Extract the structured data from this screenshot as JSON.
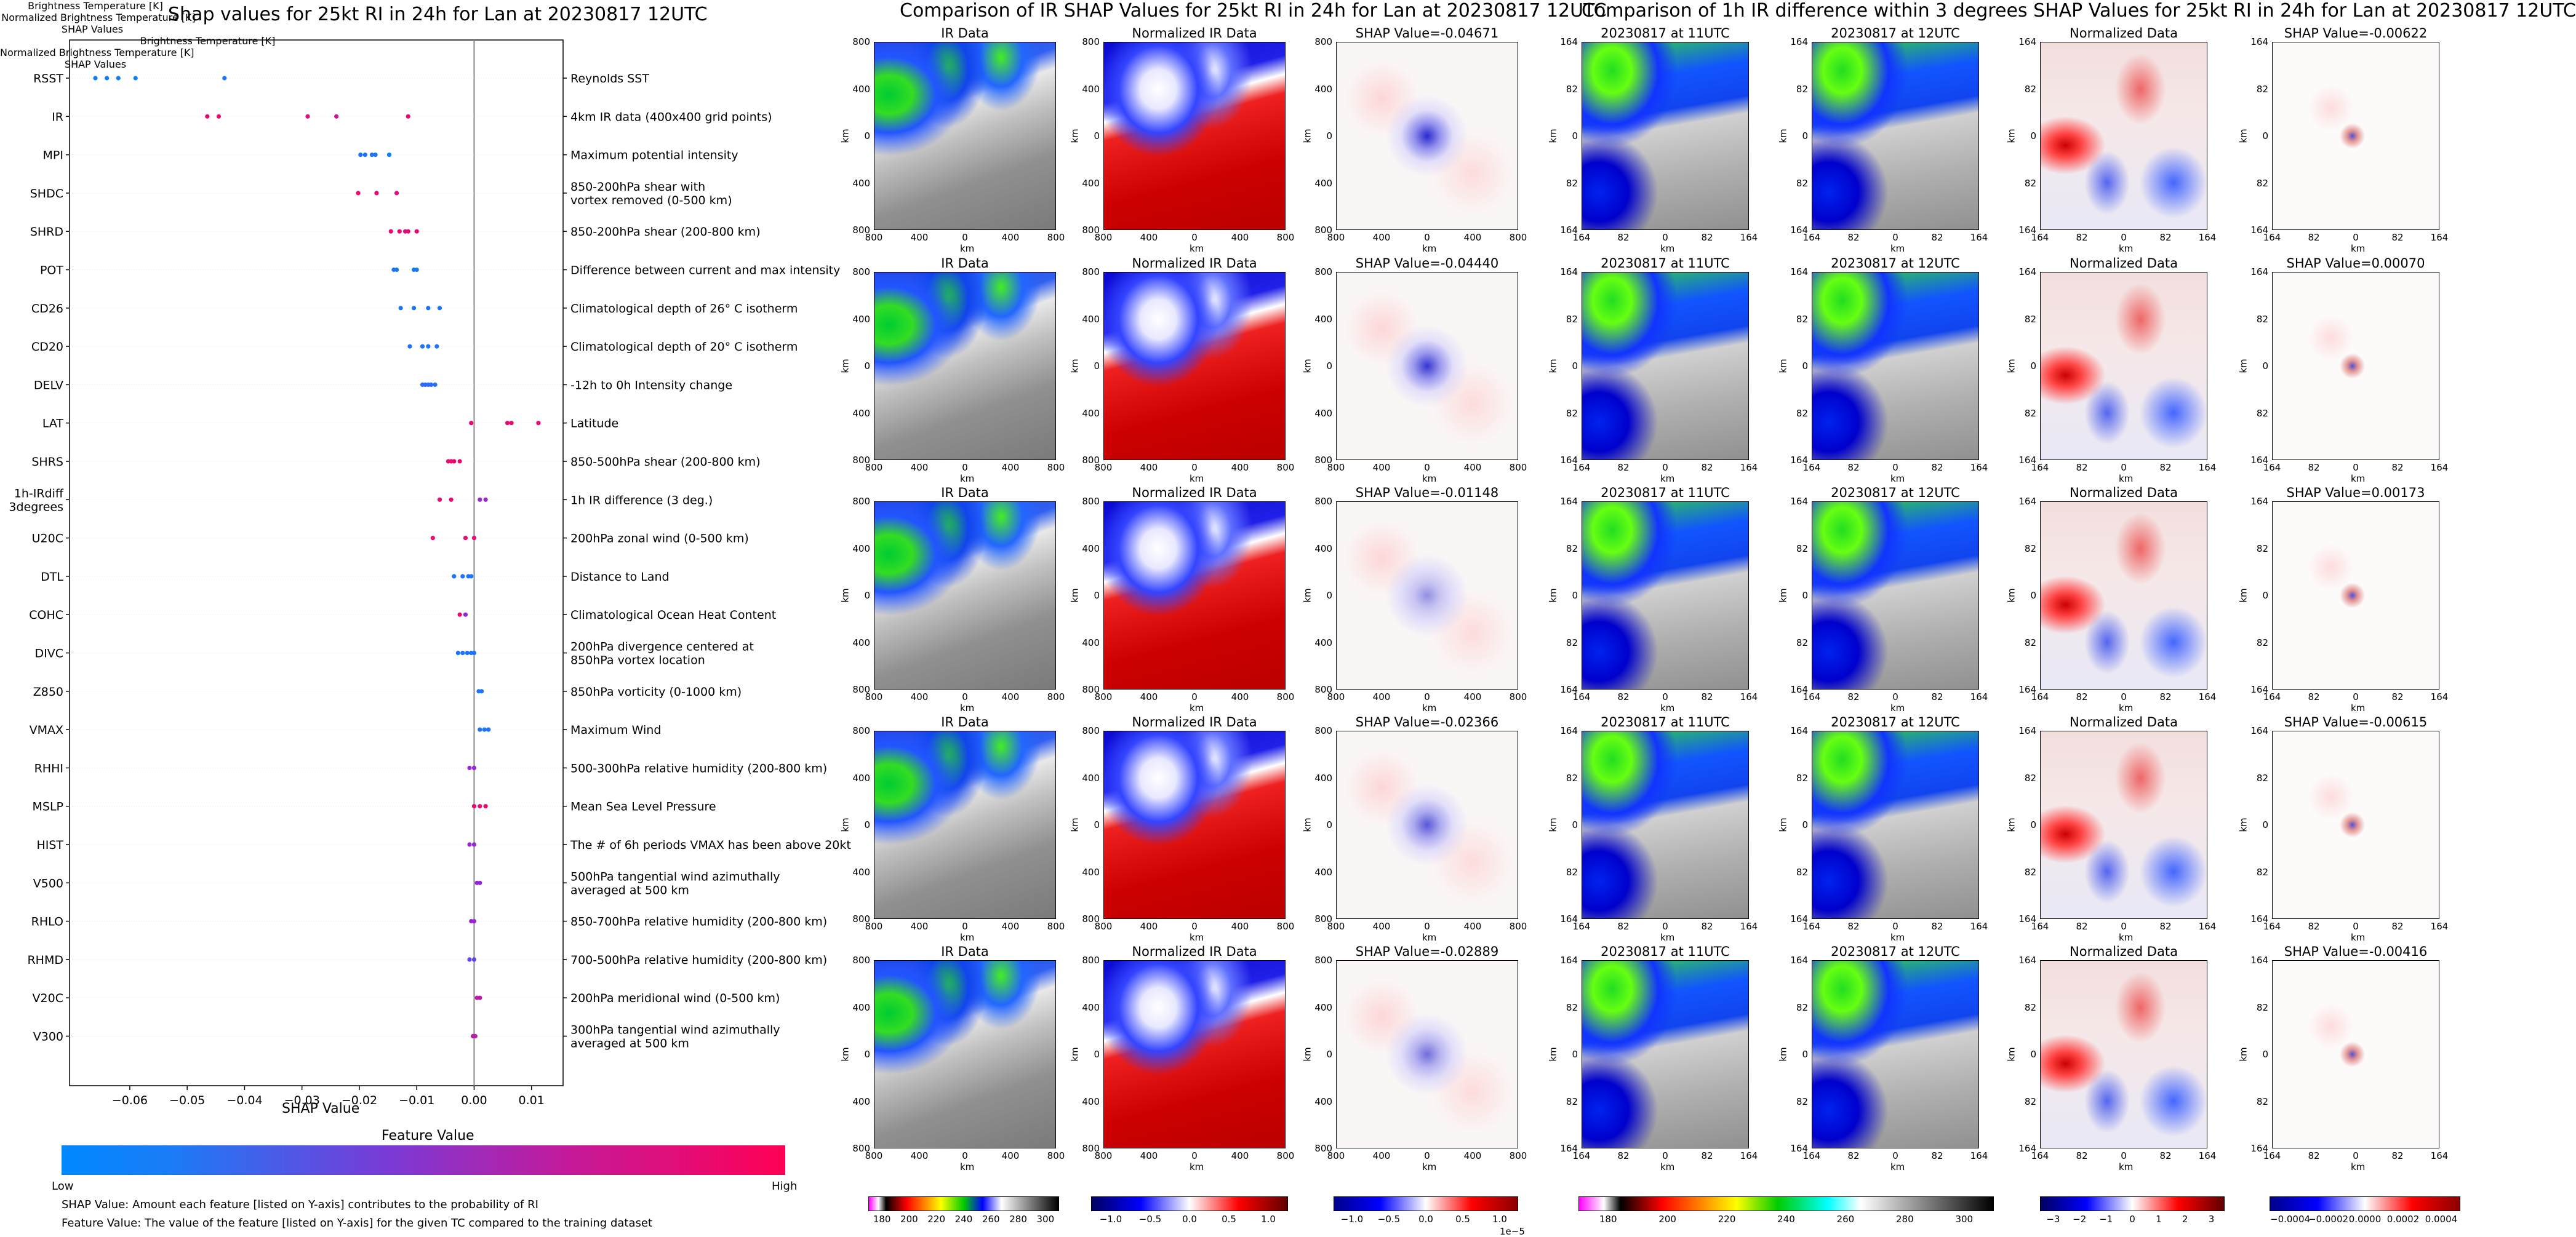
{
  "left_chart": {
    "title": "Shap values for 25kt RI in 24h for Lan at 20230817 12UTC",
    "xlabel": "SHAP Value",
    "x_ticks": [
      "-0.06",
      "-0.05",
      "-0.04",
      "-0.03",
      "-0.02",
      "-0.01",
      "0.00",
      "0.01"
    ],
    "colorbar_title": "Feature Value",
    "colorbar_low": "Low",
    "colorbar_high": "High",
    "note_line_1": "SHAP Value: Amount each feature [listed on Y-axis] contributes to the probability of RI",
    "note_line_2": "Feature Value: The value of the feature [listed on Y-axis] for the given TC compared to the training dataset"
  },
  "chart_data": {
    "type": "scatter",
    "title": "Shap values for 25kt RI in 24h for Lan at 20230817 12UTC",
    "xlabel": "SHAP Value",
    "xlim": [
      -0.0705,
      0.0155
    ],
    "features": [
      {
        "name": "RSST",
        "desc": [
          "Reynolds SST"
        ],
        "points": [
          [
            -0.066,
            0.05
          ],
          [
            -0.064,
            0.05
          ],
          [
            -0.062,
            0.05
          ],
          [
            -0.059,
            0.05
          ],
          [
            -0.0435,
            0.1
          ]
        ]
      },
      {
        "name": "IR",
        "desc": [
          "4km IR data (400x400 grid points)"
        ],
        "points": [
          [
            -0.0465,
            0.9
          ],
          [
            -0.0445,
            0.9
          ],
          [
            -0.029,
            0.85
          ],
          [
            -0.024,
            0.8
          ],
          [
            -0.0115,
            0.9
          ]
        ]
      },
      {
        "name": "MPI",
        "desc": [
          "Maximum potential intensity"
        ],
        "points": [
          [
            -0.0198,
            0.12
          ],
          [
            -0.019,
            0.1
          ],
          [
            -0.0178,
            0.1
          ],
          [
            -0.0172,
            0.1
          ],
          [
            -0.0148,
            0.05
          ]
        ]
      },
      {
        "name": "SHDC",
        "desc": [
          "850-200hPa shear with",
          "vortex removed (0-500 km)"
        ],
        "points": [
          [
            -0.0202,
            0.9
          ],
          [
            -0.017,
            0.88
          ],
          [
            -0.0135,
            0.85
          ]
        ]
      },
      {
        "name": "SHRD",
        "desc": [
          "850-200hPa shear (200-800 km)"
        ],
        "points": [
          [
            -0.0145,
            0.9
          ],
          [
            -0.013,
            0.9
          ],
          [
            -0.012,
            0.85
          ],
          [
            -0.0115,
            0.9
          ],
          [
            -0.01,
            0.9
          ]
        ]
      },
      {
        "name": "POT",
        "desc": [
          "Difference between current and max intensity"
        ],
        "points": [
          [
            -0.014,
            0.1
          ],
          [
            -0.0135,
            0.1
          ],
          [
            -0.0105,
            0.08
          ],
          [
            -0.01,
            0.08
          ]
        ]
      },
      {
        "name": "CD26",
        "desc": [
          "Climatological depth of 26° C isotherm"
        ],
        "points": [
          [
            -0.0128,
            0.1
          ],
          [
            -0.0105,
            0.1
          ],
          [
            -0.008,
            0.1
          ],
          [
            -0.006,
            0.1
          ]
        ]
      },
      {
        "name": "CD20",
        "desc": [
          "Climatological depth of 20° C isotherm"
        ],
        "points": [
          [
            -0.0112,
            0.1
          ],
          [
            -0.009,
            0.1
          ],
          [
            -0.008,
            0.1
          ],
          [
            -0.0065,
            0.1
          ]
        ]
      },
      {
        "name": "DELV",
        "desc": [
          "-12h to 0h Intensity change"
        ],
        "points": [
          [
            -0.009,
            0.15
          ],
          [
            -0.0085,
            0.15
          ],
          [
            -0.008,
            0.15
          ],
          [
            -0.0075,
            0.15
          ],
          [
            -0.0068,
            0.15
          ]
        ]
      },
      {
        "name": "LAT",
        "desc": [
          "Latitude"
        ],
        "points": [
          [
            -0.0005,
            0.9
          ],
          [
            0.0058,
            0.9
          ],
          [
            0.0065,
            0.9
          ],
          [
            0.0112,
            0.9
          ]
        ]
      },
      {
        "name": "SHRS",
        "desc": [
          "850-500hPa shear (200-800 km)"
        ],
        "points": [
          [
            -0.0045,
            0.9
          ],
          [
            -0.004,
            0.9
          ],
          [
            -0.0035,
            0.9
          ],
          [
            -0.0025,
            0.9
          ]
        ]
      },
      {
        "name": "1h-IRdiff 3degrees",
        "desc": [
          "1h IR difference (3 deg.)"
        ],
        "points": [
          [
            -0.006,
            0.9
          ],
          [
            -0.004,
            0.9
          ],
          [
            0.001,
            0.55
          ],
          [
            0.002,
            0.55
          ]
        ]
      },
      {
        "name": "U20C",
        "desc": [
          "200hPa zonal wind (0-500 km)"
        ],
        "points": [
          [
            -0.0072,
            0.9
          ],
          [
            -0.0015,
            0.9
          ],
          [
            0.0,
            0.9
          ]
        ]
      },
      {
        "name": "DTL",
        "desc": [
          "Distance to Land"
        ],
        "points": [
          [
            -0.0035,
            0.1
          ],
          [
            -0.002,
            0.1
          ],
          [
            -0.001,
            0.1
          ],
          [
            -0.0005,
            0.1
          ]
        ]
      },
      {
        "name": "COHC",
        "desc": [
          "Climatological Ocean Heat Content"
        ],
        "points": [
          [
            -0.0025,
            0.9
          ],
          [
            -0.0015,
            0.55
          ]
        ]
      },
      {
        "name": "DIVC",
        "desc": [
          "200hPa divergence centered at",
          "850hPa vortex location"
        ],
        "points": [
          [
            -0.0028,
            0.1
          ],
          [
            -0.002,
            0.1
          ],
          [
            -0.0012,
            0.1
          ],
          [
            -0.0005,
            0.1
          ],
          [
            0.0,
            0.1
          ]
        ]
      },
      {
        "name": "Z850",
        "desc": [
          "850hPa vorticity (0-1000 km)"
        ],
        "points": [
          [
            0.0008,
            0.1
          ],
          [
            0.0013,
            0.1
          ]
        ]
      },
      {
        "name": "VMAX",
        "desc": [
          "Maximum Wind"
        ],
        "points": [
          [
            0.001,
            0.1
          ],
          [
            0.0018,
            0.1
          ],
          [
            0.0025,
            0.1
          ]
        ]
      },
      {
        "name": "RHHI",
        "desc": [
          "500-300hPa relative humidity (200-800 km)"
        ],
        "points": [
          [
            -0.0008,
            0.55
          ],
          [
            0.0,
            0.55
          ]
        ]
      },
      {
        "name": "MSLP",
        "desc": [
          "Mean Sea Level Pressure"
        ],
        "points": [
          [
            0.0,
            0.9
          ],
          [
            0.001,
            0.9
          ],
          [
            0.002,
            0.9
          ]
        ]
      },
      {
        "name": "HIST",
        "desc": [
          "The # of 6h periods VMAX has been above 20kt"
        ],
        "points": [
          [
            -0.0008,
            0.55
          ],
          [
            0.0,
            0.55
          ]
        ]
      },
      {
        "name": "V500",
        "desc": [
          "500hPa tangential wind azimuthally",
          "averaged at 500 km"
        ],
        "points": [
          [
            0.0005,
            0.55
          ],
          [
            0.001,
            0.55
          ]
        ]
      },
      {
        "name": "RHLO",
        "desc": [
          "850-700hPa relative humidity (200-800 km)"
        ],
        "points": [
          [
            -0.0005,
            0.55
          ],
          [
            0.0,
            0.55
          ]
        ]
      },
      {
        "name": "RHMD",
        "desc": [
          "700-500hPa relative humidity (200-800 km)"
        ],
        "points": [
          [
            -0.0008,
            0.35
          ],
          [
            0.0,
            0.35
          ]
        ]
      },
      {
        "name": "V20C",
        "desc": [
          "200hPa meridional wind (0-500 km)"
        ],
        "points": [
          [
            0.0005,
            0.7
          ],
          [
            0.001,
            0.7
          ]
        ]
      },
      {
        "name": "V300",
        "desc": [
          "300hPa tangential wind azimuthally",
          "averaged at 500 km"
        ],
        "points": [
          [
            -0.0002,
            0.7
          ],
          [
            0.0002,
            0.7
          ]
        ]
      }
    ]
  },
  "ir_section": {
    "title": "Comparison of IR SHAP Values for 25kt RI in 24h for Lan at 20230817 12UTC",
    "col_titles": [
      "IR Data",
      "Normalized IR Data"
    ],
    "shap_titles": [
      "SHAP Value=-0.04671",
      "SHAP Value=-0.04440",
      "SHAP Value=-0.01148",
      "SHAP Value=-0.02366",
      "SHAP Value=-0.02889"
    ],
    "y_ticks": [
      "800",
      "400",
      "0",
      "400",
      "800"
    ],
    "x_ticks": [
      "800",
      "400",
      "0",
      "400",
      "800"
    ],
    "axis_label": "km",
    "colorbars": [
      {
        "label": "Brightness Temperature [K]",
        "ticks": [
          "180",
          "200",
          "220",
          "240",
          "260",
          "280",
          "300"
        ]
      },
      {
        "label": "Normalized Brightness Temperature [K]",
        "ticks": [
          "−1.0",
          "−0.5",
          "0.0",
          "0.5",
          "1.0"
        ]
      },
      {
        "label": "SHAP Values",
        "ticks": [
          "−1.0",
          "−0.5",
          "0.0",
          "0.5",
          "1.0"
        ],
        "exponent": "1e−5"
      }
    ]
  },
  "diff_section": {
    "title": "Comparison of 1h IR difference within 3 degrees SHAP Values for 25kt RI in 24h for Lan at 20230817 12UTC",
    "col_titles": [
      "20230817 at 11UTC",
      "20230817 at 12UTC",
      "Normalized Data"
    ],
    "shap_titles": [
      "SHAP Value=-0.00622",
      "SHAP Value=0.00070",
      "SHAP Value=0.00173",
      "SHAP Value=-0.00615",
      "SHAP Value=-0.00416"
    ],
    "y_ticks": [
      "164",
      "82",
      "0",
      "82",
      "164"
    ],
    "x_ticks": [
      "164",
      "82",
      "0",
      "82",
      "164"
    ],
    "axis_label": "km",
    "colorbars": [
      {
        "label": "Brightness Temperature [K]",
        "ticks": [
          "180",
          "200",
          "220",
          "240",
          "260",
          "280",
          "300"
        ]
      },
      {
        "label": "Normalized Brightness Temperature [K]",
        "ticks": [
          "−3",
          "−2",
          "−1",
          "0",
          "1",
          "2",
          "3"
        ]
      },
      {
        "label": "SHAP Values",
        "ticks": [
          "−0.0004",
          "−0.0002",
          "0.0000",
          "0.0002",
          "0.0004"
        ]
      }
    ]
  },
  "colors": {
    "low": "#0088ff",
    "mid": "#8a2be2",
    "high": "#ff0055"
  }
}
